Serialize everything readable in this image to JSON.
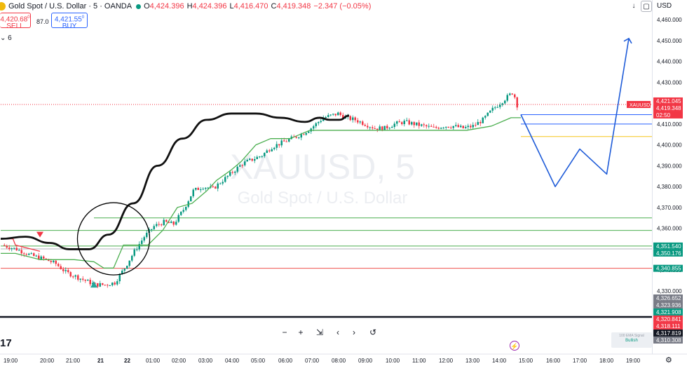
{
  "header": {
    "symbol_title": "Gold Spot / U.S. Dollar · 5 · OANDA",
    "ohlc": [
      {
        "key": "O",
        "value": "4,424.396"
      },
      {
        "key": "H",
        "value": "4,424.396"
      },
      {
        "key": "L",
        "value": "4,416.470"
      },
      {
        "key": "C",
        "value": "4,419.348"
      }
    ],
    "change": "−2.347 (−0.05%)"
  },
  "trade": {
    "sell_price": "4,420.68",
    "sell_price_sup": "0",
    "sell_label": "SELL",
    "spread": "87.0",
    "buy_price": "4,421.55",
    "buy_price_sup": "0",
    "buy_label": "BUY"
  },
  "indicator_toggle": "6",
  "top_right": {
    "currency": "USD"
  },
  "watermark": {
    "symbol": "XAUUSD, 5",
    "name": "Gold Spot / U.S. Dollar"
  },
  "price_scale": {
    "ticks": [
      "4,460.000",
      "4,450.000",
      "4,440.000",
      "4,430.000",
      "4,420.000",
      "4,410.000",
      "4,400.000",
      "4,390.000",
      "4,380.000",
      "4,370.000",
      "4,360.000",
      "4,350.000",
      "4,340.000",
      "4,330.000"
    ],
    "labels": [
      {
        "text": "4,421.045",
        "price": 4421.045,
        "color": "#f23645"
      },
      {
        "text": "4,419.348",
        "price": 4419.348,
        "color": "#f23645"
      },
      {
        "text": "02:50",
        "price": 4417.65,
        "color": "#f23645"
      },
      {
        "text": "4,351.540",
        "price": 4351.54,
        "color": "#089981"
      },
      {
        "text": "4,350.176",
        "price": 4350.176,
        "color": "#089981"
      },
      {
        "text": "4,340.855",
        "price": 4340.855,
        "color": "#089981"
      },
      {
        "text": "4,326.652",
        "price": 4326.652,
        "color": "#787b86"
      },
      {
        "text": "4,323.936",
        "price": 4323.936,
        "color": "#787b86"
      },
      {
        "text": "4,321.908",
        "price": 4321.908,
        "color": "#089981"
      },
      {
        "text": "4,320.841",
        "price": 4320.841,
        "color": "#f23645"
      },
      {
        "text": "4,318.111",
        "price": 4318.111,
        "color": "#f23645"
      },
      {
        "text": "4,317.819",
        "price": 4317.819,
        "color": "#131722"
      },
      {
        "text": "4,310.308",
        "price": 4310.308,
        "color": "#787b86"
      }
    ],
    "tag": "XAUUSD"
  },
  "time_axis": [
    "19:00",
    "20:00",
    "21:00",
    "21",
    "22",
    "01:00",
    "02:00",
    "03:00",
    "04:00",
    "05:00",
    "06:00",
    "07:00",
    "08:00",
    "09:00",
    "10:00",
    "11:00",
    "12:00",
    "13:00",
    "14:00",
    "15:00",
    "16:00",
    "17:00",
    "18:00",
    "19:00"
  ],
  "controls": [
    "−",
    "+",
    "⇲",
    "‹",
    "›",
    "↺"
  ],
  "logo": "17",
  "signal_badge": {
    "title": "100 EMA Signal",
    "value": "Bullish"
  },
  "chart_data": {
    "type": "candlestick",
    "title": "XAUUSD, 5",
    "subtitle": "Gold Spot / U.S. Dollar",
    "ylim": [
      4307,
      4465
    ],
    "close_path": [
      [
        0,
        4352
      ],
      [
        6,
        4350
      ],
      [
        12,
        4347
      ],
      [
        18,
        4345
      ],
      [
        22,
        4343
      ],
      [
        26,
        4339
      ],
      [
        30,
        4337
      ],
      [
        34,
        4335
      ],
      [
        38,
        4333
      ],
      [
        42,
        4333
      ],
      [
        46,
        4334
      ],
      [
        50,
        4341
      ],
      [
        54,
        4349
      ],
      [
        58,
        4356
      ],
      [
        62,
        4361
      ],
      [
        66,
        4363
      ],
      [
        70,
        4362
      ],
      [
        74,
        4369
      ],
      [
        78,
        4378
      ],
      [
        82,
        4380
      ],
      [
        86,
        4379
      ],
      [
        90,
        4383
      ],
      [
        94,
        4387
      ],
      [
        98,
        4391
      ],
      [
        102,
        4393
      ],
      [
        106,
        4395
      ],
      [
        110,
        4399
      ],
      [
        114,
        4401
      ],
      [
        118,
        4403
      ],
      [
        122,
        4405
      ],
      [
        126,
        4408
      ],
      [
        128,
        4410
      ],
      [
        131,
        4413
      ],
      [
        134,
        4414
      ],
      [
        137,
        4415
      ],
      [
        140,
        4413
      ],
      [
        144,
        4412
      ],
      [
        148,
        4410
      ],
      [
        152,
        4408
      ],
      [
        156,
        4408
      ],
      [
        160,
        4410
      ],
      [
        164,
        4411
      ],
      [
        168,
        4410
      ],
      [
        172,
        4409
      ],
      [
        176,
        4408
      ],
      [
        180,
        4409
      ],
      [
        184,
        4409
      ],
      [
        188,
        4408
      ],
      [
        192,
        4409
      ],
      [
        196,
        4412
      ],
      [
        200,
        4417
      ],
      [
        203,
        4420
      ],
      [
        206,
        4423
      ],
      [
        208,
        4425
      ],
      [
        209,
        4423
      ],
      [
        210,
        4419
      ]
    ],
    "ema100": [
      [
        0,
        4355
      ],
      [
        10,
        4356
      ],
      [
        20,
        4353
      ],
      [
        28,
        4350
      ],
      [
        36,
        4350
      ],
      [
        44,
        4357
      ],
      [
        54,
        4372
      ],
      [
        64,
        4390
      ],
      [
        74,
        4403
      ],
      [
        84,
        4412
      ],
      [
        94,
        4415
      ],
      [
        104,
        4415
      ],
      [
        114,
        4413
      ],
      [
        124,
        4411
      ],
      [
        130,
        4413
      ],
      [
        134,
        4412
      ],
      [
        138,
        4412
      ],
      [
        142,
        4414
      ]
    ],
    "trailing_stop": {
      "red_segment": [
        [
          0,
          4355
        ],
        [
          5,
          4355
        ],
        [
          6,
          4352
        ],
        [
          16,
          4349
        ]
      ],
      "green_segment": [
        [
          0,
          4348
        ],
        [
          6,
          4348
        ],
        [
          16,
          4345
        ],
        [
          30,
          4345
        ],
        [
          38,
          4344
        ],
        [
          42,
          4341
        ],
        [
          46,
          4341
        ],
        [
          50,
          4352
        ],
        [
          60,
          4352
        ],
        [
          66,
          4359
        ],
        [
          72,
          4370
        ],
        [
          78,
          4372
        ],
        [
          84,
          4378
        ],
        [
          88,
          4383
        ],
        [
          94,
          4388
        ],
        [
          98,
          4392
        ],
        [
          104,
          4400
        ],
        [
          110,
          4403
        ],
        [
          118,
          4403
        ],
        [
          122,
          4405
        ],
        [
          126,
          4407
        ],
        [
          170,
          4407
        ],
        [
          176,
          4407
        ],
        [
          190,
          4407
        ],
        [
          200,
          4409
        ],
        [
          206,
          4412
        ],
        [
          208,
          4413
        ],
        [
          212,
          4413
        ]
      ]
    },
    "horizontal_levels": [
      {
        "price": 4365.0,
        "color": "#4caf50",
        "from": 38
      },
      {
        "price": 4359.0,
        "color": "#4caf50",
        "from": 0
      },
      {
        "price": 4351.54,
        "color": "#4caf50",
        "from": 0
      },
      {
        "price": 4350.176,
        "color": "#b2b5be",
        "from": 0
      },
      {
        "price": 4340.855,
        "color": "#ef5350",
        "from": 0
      },
      {
        "price": 4419.348,
        "color": "#f23645",
        "from": 0,
        "dotted": true
      },
      {
        "price": 4414.5,
        "color": "#2962ff",
        "from": 212
      },
      {
        "price": 4410.0,
        "color": "#2962ff",
        "from": 212
      },
      {
        "price": 4404.0,
        "color": "#f5c518",
        "from": 212
      }
    ],
    "projection": [
      [
        212,
        4414.5
      ],
      [
        226,
        4380
      ],
      [
        236,
        4398
      ],
      [
        247,
        4386
      ],
      [
        256,
        4451
      ]
    ],
    "markers": [
      {
        "type": "sell",
        "x": 16,
        "price": 4357
      },
      {
        "type": "buy",
        "x": 38,
        "price": 4333
      }
    ],
    "highlight_circle": {
      "x": 46,
      "price": 4355,
      "r_bars": 9.5
    }
  }
}
